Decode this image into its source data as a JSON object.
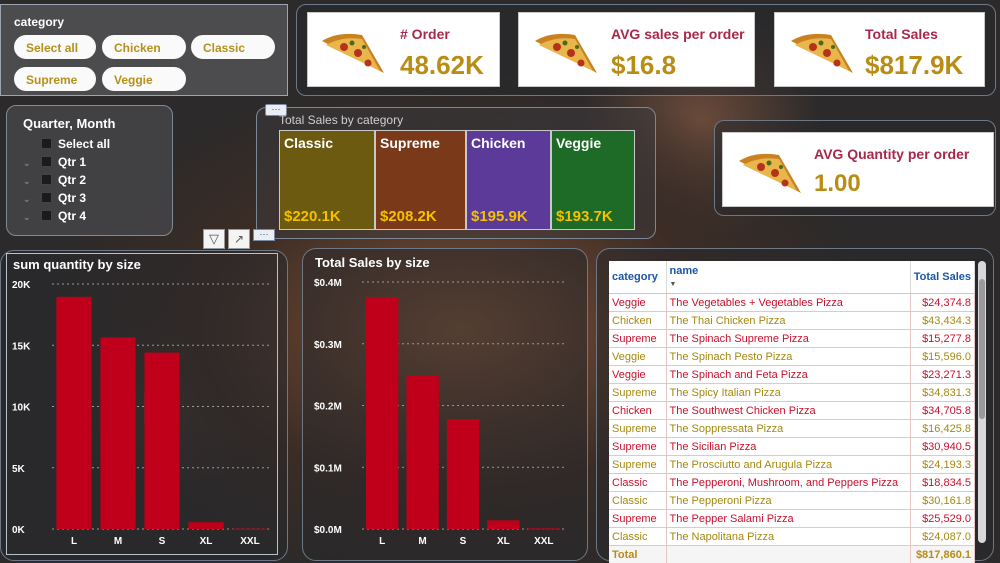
{
  "category_slicer": {
    "title": "category",
    "options": [
      "Select all",
      "Chicken",
      "Classic",
      "Supreme",
      "Veggie"
    ]
  },
  "quarter_slicer": {
    "title": "Quarter, Month",
    "options": [
      "Select all",
      "Qtr 1",
      "Qtr 2",
      "Qtr 3",
      "Qtr 4"
    ]
  },
  "kpis": {
    "orders": {
      "label": "# Order",
      "value": "48.62K"
    },
    "avg_sales": {
      "label": "AVG sales per order",
      "value": "$16.8"
    },
    "total_sales": {
      "label": "Total Sales",
      "value": "$817.9K"
    },
    "avg_qty": {
      "label": "AVG Quantity per order",
      "value": "1.00"
    }
  },
  "category_tiles": {
    "title": "Total Sales by category",
    "tiles": [
      {
        "name": "Classic",
        "value": "$220.1K",
        "color": "#6b5a10"
      },
      {
        "name": "Supreme",
        "value": "$208.2K",
        "color": "#7a3a1a"
      },
      {
        "name": "Chicken",
        "value": "$195.9K",
        "color": "#5b3a9a"
      },
      {
        "name": "Veggie",
        "value": "$193.7K",
        "color": "#1e6b28"
      }
    ]
  },
  "chart_data": [
    {
      "type": "bar",
      "title": "sum quantity by size",
      "categories": [
        "L",
        "M",
        "S",
        "XL",
        "XXL"
      ],
      "values": [
        18956,
        15635,
        14403,
        552,
        28
      ],
      "ylim": [
        0,
        20000
      ],
      "yticks": [
        "0K",
        "5K",
        "10K",
        "15K",
        "20K"
      ],
      "bar_color": "#c0001a",
      "grid": true
    },
    {
      "type": "bar",
      "title": "Total Sales by size",
      "categories": [
        "L",
        "M",
        "S",
        "XL",
        "XXL"
      ],
      "values": [
        375318,
        249382,
        178077,
        14076,
        1007
      ],
      "ylim": [
        0,
        400000
      ],
      "yticks": [
        "$0.0M",
        "$0.1M",
        "$0.2M",
        "$0.3M",
        "$0.4M"
      ],
      "bar_color": "#c0001a",
      "grid": true
    }
  ],
  "table": {
    "headers": [
      "category",
      "name",
      "Total Sales"
    ],
    "rows": [
      [
        "Veggie",
        "The Vegetables + Vegetables Pizza",
        "$24,374.8"
      ],
      [
        "Chicken",
        "The Thai Chicken Pizza",
        "$43,434.3"
      ],
      [
        "Supreme",
        "The Spinach Supreme Pizza",
        "$15,277.8"
      ],
      [
        "Veggie",
        "The Spinach Pesto Pizza",
        "$15,596.0"
      ],
      [
        "Veggie",
        "The Spinach and Feta Pizza",
        "$23,271.3"
      ],
      [
        "Supreme",
        "The Spicy Italian Pizza",
        "$34,831.3"
      ],
      [
        "Chicken",
        "The Southwest Chicken Pizza",
        "$34,705.8"
      ],
      [
        "Supreme",
        "The Soppressata Pizza",
        "$16,425.8"
      ],
      [
        "Supreme",
        "The Sicilian Pizza",
        "$30,940.5"
      ],
      [
        "Supreme",
        "The Prosciutto and Arugula Pizza",
        "$24,193.3"
      ],
      [
        "Classic",
        "The Pepperoni, Mushroom, and Peppers Pizza",
        "$18,834.5"
      ],
      [
        "Classic",
        "The Pepperoni Pizza",
        "$30,161.8"
      ],
      [
        "Supreme",
        "The Pepper Salami Pizza",
        "$25,529.0"
      ],
      [
        "Classic",
        "The Napolitana Pizza",
        "$24,087.0"
      ]
    ],
    "total": [
      "Total",
      "",
      "$817,860.1"
    ]
  }
}
